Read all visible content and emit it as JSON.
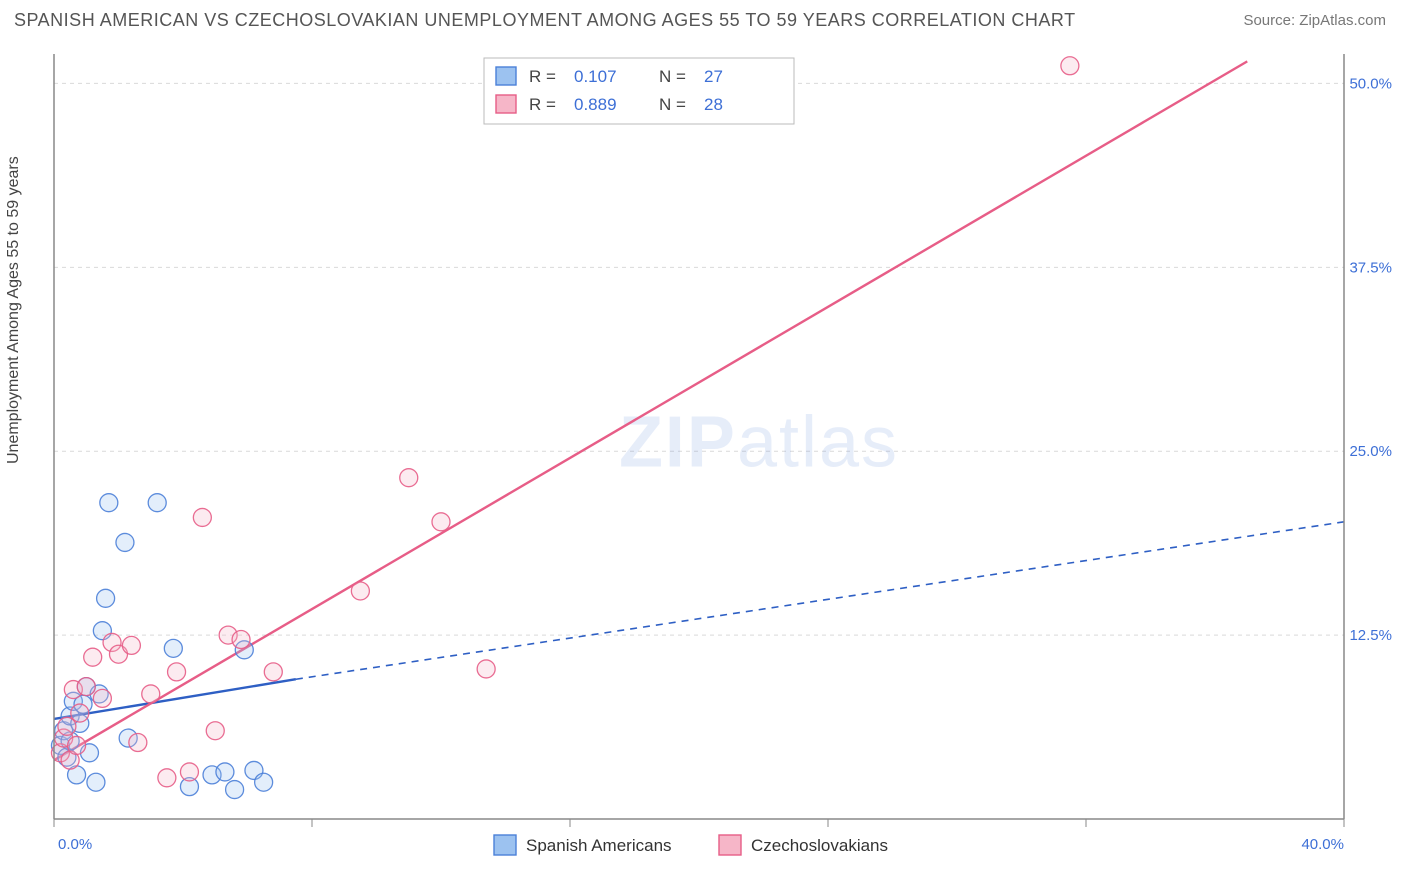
{
  "header": {
    "title": "SPANISH AMERICAN VS CZECHOSLOVAKIAN UNEMPLOYMENT AMONG AGES 55 TO 59 YEARS CORRELATION CHART",
    "source": "Source: ZipAtlas.com"
  },
  "chart": {
    "type": "scatter",
    "ylabel": "Unemployment Among Ages 55 to 59 years",
    "watermark": {
      "pre": "ZIP",
      "post": "atlas"
    },
    "background_color": "#ffffff",
    "grid_color": "#d9d9d9",
    "axis_color": "#888888",
    "label_color": "#3d6fd6",
    "marker_radius": 9,
    "marker_fill_opacity": 0.28,
    "marker_stroke_opacity": 0.9,
    "marker_stroke_width": 1.3,
    "xlim": [
      0,
      40
    ],
    "ylim": [
      0,
      52
    ],
    "x_ticks": [
      0,
      8,
      16,
      24,
      32,
      40
    ],
    "x_tick_labels": [
      "0.0%",
      "",
      "",
      "",
      "",
      "40.0%"
    ],
    "y_ticks": [
      12.5,
      25.0,
      37.5,
      50.0
    ],
    "y_tick_labels": [
      "12.5%",
      "25.0%",
      "37.5%",
      "50.0%"
    ],
    "stats_box": {
      "rows": [
        {
          "swatch_fill": "#9cc2f0",
          "swatch_stroke": "#4b80d8",
          "r_label": "R =",
          "r": "0.107",
          "n_label": "N =",
          "n": "27"
        },
        {
          "swatch_fill": "#f6b6c8",
          "swatch_stroke": "#e75d87",
          "r_label": "R =",
          "r": "0.889",
          "n_label": "N =",
          "n": "28"
        }
      ]
    },
    "legend": {
      "items": [
        {
          "swatch_fill": "#9cc2f0",
          "swatch_stroke": "#4b80d8",
          "label": "Spanish Americans"
        },
        {
          "swatch_fill": "#f6b6c8",
          "swatch_stroke": "#e75d87",
          "label": "Czechoslovakians"
        }
      ]
    },
    "series": [
      {
        "name": "Spanish Americans",
        "color_fill": "#9cc2f0",
        "color_stroke": "#4b80d8",
        "trend": {
          "solid": {
            "x1": 0,
            "y1": 6.8,
            "x2": 7.5,
            "y2": 9.5
          },
          "dashed": {
            "x1": 7.5,
            "y1": 9.5,
            "x2": 40,
            "y2": 20.2
          },
          "color": "#2e5fc4",
          "width": 2.4,
          "dash": "7 6"
        },
        "points": [
          [
            0.2,
            5.0
          ],
          [
            0.3,
            6.0
          ],
          [
            0.4,
            4.2
          ],
          [
            0.5,
            7.0
          ],
          [
            0.5,
            5.3
          ],
          [
            0.6,
            8.0
          ],
          [
            0.7,
            3.0
          ],
          [
            0.8,
            6.5
          ],
          [
            0.9,
            7.8
          ],
          [
            1.0,
            9.0
          ],
          [
            1.1,
            4.5
          ],
          [
            1.3,
            2.5
          ],
          [
            1.4,
            8.5
          ],
          [
            1.5,
            12.8
          ],
          [
            1.6,
            15.0
          ],
          [
            1.7,
            21.5
          ],
          [
            2.2,
            18.8
          ],
          [
            2.3,
            5.5
          ],
          [
            3.2,
            21.5
          ],
          [
            3.7,
            11.6
          ],
          [
            4.2,
            2.2
          ],
          [
            4.9,
            3.0
          ],
          [
            5.3,
            3.2
          ],
          [
            5.6,
            2.0
          ],
          [
            5.9,
            11.5
          ],
          [
            6.2,
            3.3
          ],
          [
            6.5,
            2.5
          ]
        ]
      },
      {
        "name": "Czechoslovakians",
        "color_fill": "#f6b6c8",
        "color_stroke": "#e75d87",
        "trend": {
          "solid": {
            "x1": 0,
            "y1": 4.0,
            "x2": 37,
            "y2": 51.5
          },
          "dashed": null,
          "color": "#e75d87",
          "width": 2.4,
          "dash": null
        },
        "points": [
          [
            0.2,
            4.5
          ],
          [
            0.3,
            5.5
          ],
          [
            0.4,
            6.3
          ],
          [
            0.5,
            4.0
          ],
          [
            0.6,
            8.8
          ],
          [
            0.7,
            5.0
          ],
          [
            0.8,
            7.2
          ],
          [
            1.0,
            9.0
          ],
          [
            1.2,
            11.0
          ],
          [
            1.5,
            8.2
          ],
          [
            1.8,
            12.0
          ],
          [
            2.0,
            11.2
          ],
          [
            2.4,
            11.8
          ],
          [
            2.6,
            5.2
          ],
          [
            3.0,
            8.5
          ],
          [
            3.5,
            2.8
          ],
          [
            3.8,
            10.0
          ],
          [
            4.2,
            3.2
          ],
          [
            4.6,
            20.5
          ],
          [
            5.0,
            6.0
          ],
          [
            5.4,
            12.5
          ],
          [
            5.8,
            12.2
          ],
          [
            6.8,
            10.0
          ],
          [
            9.5,
            15.5
          ],
          [
            11.0,
            23.2
          ],
          [
            12.0,
            20.2
          ],
          [
            13.4,
            10.2
          ],
          [
            31.5,
            51.2
          ]
        ]
      }
    ]
  }
}
